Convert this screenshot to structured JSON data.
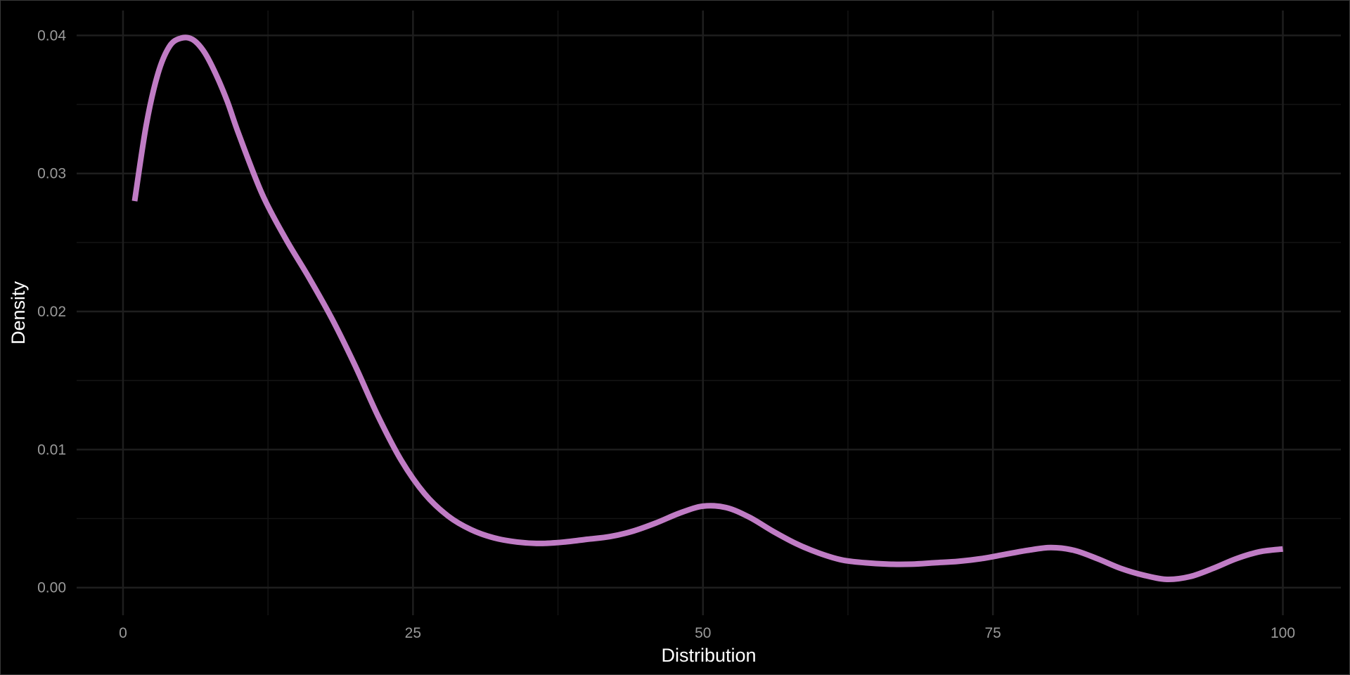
{
  "chart_data": {
    "type": "line",
    "title": "",
    "xlabel": "Distribution",
    "ylabel": "Density",
    "xlim": [
      -4,
      105
    ],
    "ylim": [
      -0.002,
      0.0418
    ],
    "x_ticks": [
      0,
      25,
      50,
      75,
      100
    ],
    "x_tick_labels": [
      "0",
      "25",
      "50",
      "75",
      "100"
    ],
    "y_ticks": [
      0.0,
      0.01,
      0.02,
      0.03,
      0.04
    ],
    "y_tick_labels": [
      "0.00",
      "0.01",
      "0.02",
      "0.03",
      "0.04"
    ],
    "grid": true,
    "background_color": "#000000",
    "grid_major_color": "#1e1e1e",
    "grid_minor_color": "#141414",
    "series": [
      {
        "color": "#c07cc5",
        "x": [
          1,
          2,
          3,
          4,
          5,
          6,
          7,
          8,
          9,
          10,
          12,
          14,
          16,
          18,
          20,
          22,
          24,
          26,
          28,
          30,
          32,
          34,
          36,
          38,
          40,
          42,
          44,
          46,
          48,
          50,
          52,
          54,
          56,
          58,
          60,
          62,
          64,
          66,
          68,
          70,
          72,
          74,
          76,
          78,
          80,
          82,
          84,
          86,
          88,
          90,
          92,
          94,
          96,
          98,
          100
        ],
        "y": [
          0.028,
          0.0335,
          0.0372,
          0.0392,
          0.0398,
          0.0397,
          0.0388,
          0.0372,
          0.0352,
          0.0328,
          0.0285,
          0.0253,
          0.0225,
          0.0195,
          0.0161,
          0.0124,
          0.0092,
          0.0068,
          0.0052,
          0.0042,
          0.0036,
          0.0033,
          0.0032,
          0.0033,
          0.0035,
          0.0037,
          0.0041,
          0.0047,
          0.0054,
          0.0059,
          0.0058,
          0.0051,
          0.0041,
          0.0032,
          0.0025,
          0.002,
          0.0018,
          0.0017,
          0.0017,
          0.0018,
          0.0019,
          0.0021,
          0.0024,
          0.0027,
          0.0029,
          0.0027,
          0.0021,
          0.0014,
          0.0009,
          0.0006,
          0.0008,
          0.0014,
          0.0021,
          0.0026,
          0.0028
        ]
      }
    ]
  }
}
